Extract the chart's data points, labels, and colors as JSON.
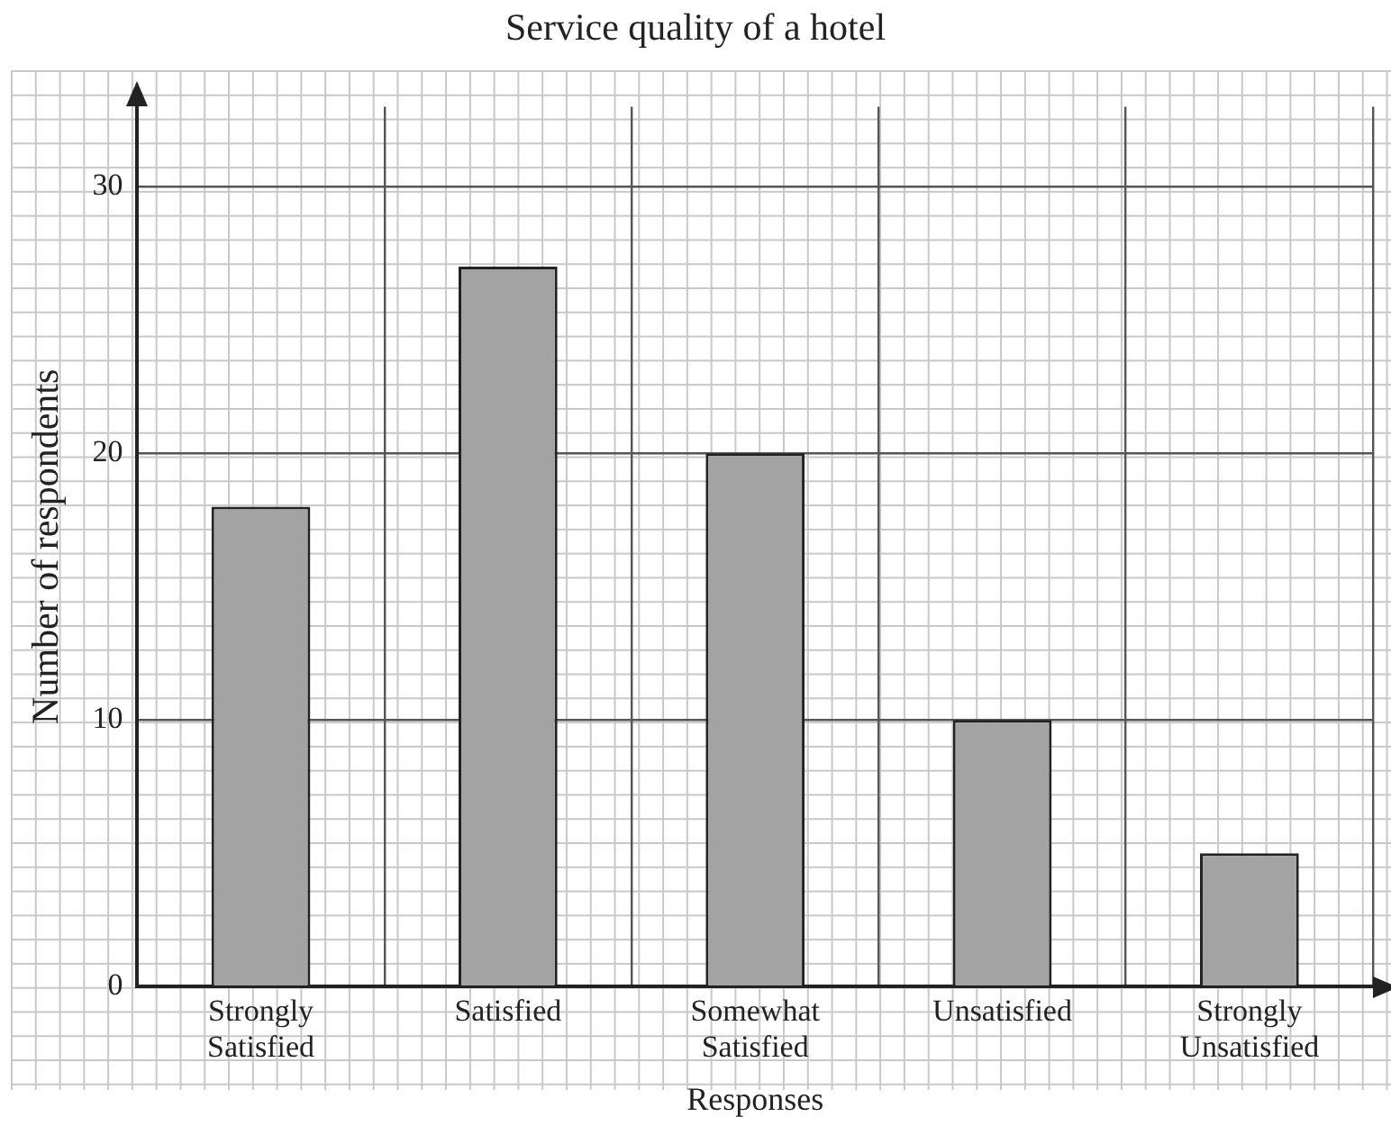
{
  "chart_data": {
    "type": "bar",
    "title": "Service quality of a hotel",
    "xlabel": "Responses",
    "ylabel": "Number of respondents",
    "categories": [
      "Strongly Satisfied",
      "Satisfied",
      "Somewhat Satisfied",
      "Unsatisfied",
      "Strongly Unsatisfied"
    ],
    "values": [
      18,
      27,
      20,
      10,
      5
    ],
    "color": "#a3a3a3",
    "ylim": [
      0,
      33
    ],
    "yticks": [
      0,
      10,
      20,
      30
    ],
    "grid": true
  }
}
